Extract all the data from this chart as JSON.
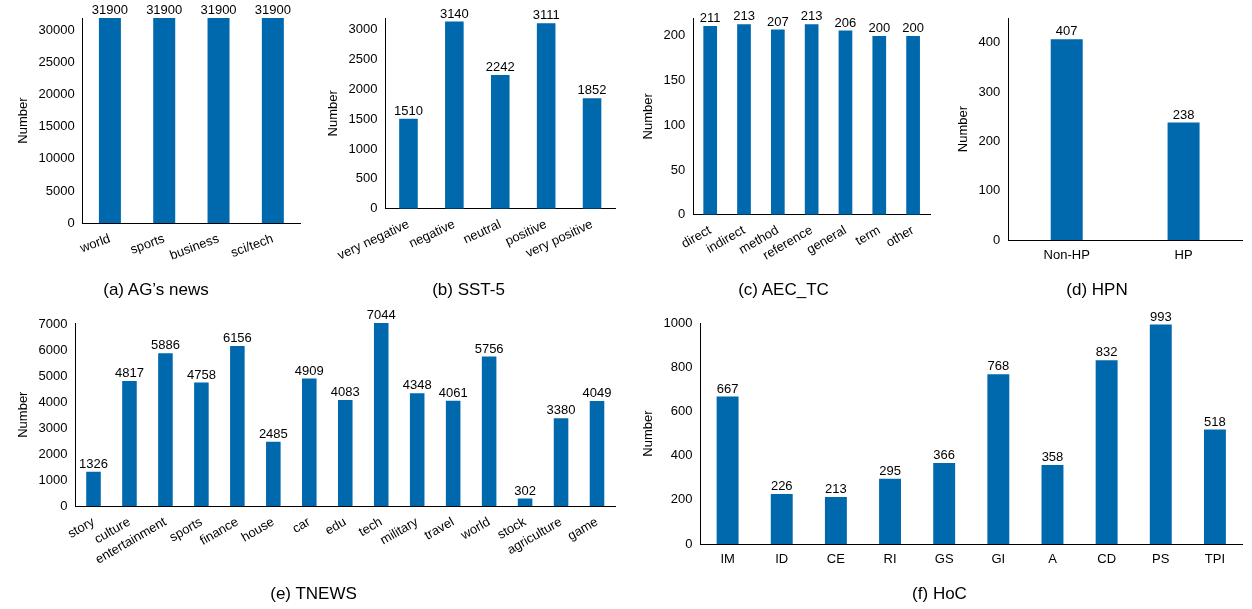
{
  "chart_data": [
    {
      "type": "bar",
      "title": "(a) AG’s news",
      "ylabel": "Number",
      "categories": [
        "world",
        "sports",
        "business",
        "sci/tech"
      ],
      "values": [
        31900,
        31900,
        31900,
        31900
      ],
      "color": "#0068ad",
      "ylim": [
        0,
        31900
      ],
      "yticks": [
        0,
        5000,
        10000,
        15000,
        20000,
        25000,
        30000
      ],
      "data_labels": true,
      "grid": false,
      "legend": false
    },
    {
      "type": "bar",
      "title": "(b) SST-5",
      "ylabel": "Number",
      "categories": [
        "very negative",
        "negative",
        "neutral",
        "positive",
        "very positive"
      ],
      "values": [
        1510,
        3140,
        2242,
        3111,
        1852
      ],
      "color": "#0068ad",
      "ylim": [
        0,
        3200
      ],
      "yticks": [
        0,
        500,
        1000,
        1500,
        2000,
        2500,
        3000
      ],
      "data_labels": true,
      "grid": false,
      "legend": false
    },
    {
      "type": "bar",
      "title": "(c) AEC_TC",
      "ylabel": "Number",
      "categories": [
        "direct",
        "indirect",
        "method",
        "reference",
        "general",
        "term",
        "other"
      ],
      "values": [
        211,
        213,
        207,
        213,
        206,
        200,
        200
      ],
      "color": "#0068ad",
      "ylim": [
        0,
        220
      ],
      "yticks": [
        0,
        50,
        100,
        150,
        200
      ],
      "data_labels": true,
      "grid": false,
      "legend": false
    },
    {
      "type": "bar",
      "title": "(d) HPN",
      "ylabel": "Number",
      "categories": [
        "Non-HP",
        "HP"
      ],
      "values": [
        407,
        238
      ],
      "color": "#0068ad",
      "ylim": [
        0,
        450
      ],
      "yticks": [
        0,
        100,
        200,
        300,
        400
      ],
      "data_labels": true,
      "grid": false,
      "legend": false
    },
    {
      "type": "bar",
      "title": "(e) TNEWS",
      "ylabel": "Number",
      "categories": [
        "story",
        "culture",
        "entertainment",
        "sports",
        "finance",
        "house",
        "car",
        "edu",
        "tech",
        "military",
        "travel",
        "world",
        "stock",
        "agriculture",
        "game"
      ],
      "values": [
        1326,
        4817,
        5886,
        4758,
        6156,
        2485,
        4909,
        4083,
        7044,
        4348,
        4061,
        5756,
        302,
        3380,
        4049
      ],
      "color": "#0068ad",
      "ylim": [
        0,
        7044
      ],
      "yticks": [
        0,
        1000,
        2000,
        3000,
        4000,
        5000,
        6000,
        7000
      ],
      "data_labels": true,
      "grid": false,
      "legend": false
    },
    {
      "type": "bar",
      "title": "(f) HoC",
      "ylabel": "Number",
      "categories": [
        "IM",
        "ID",
        "CE",
        "RI",
        "GS",
        "GI",
        "A",
        "CD",
        "PS",
        "TPI"
      ],
      "values": [
        667,
        226,
        213,
        295,
        366,
        768,
        358,
        832,
        993,
        518
      ],
      "color": "#0068ad",
      "ylim": [
        0,
        1000
      ],
      "yticks": [
        0,
        200,
        400,
        600,
        800,
        1000
      ],
      "data_labels": true,
      "grid": false,
      "legend": false
    }
  ]
}
